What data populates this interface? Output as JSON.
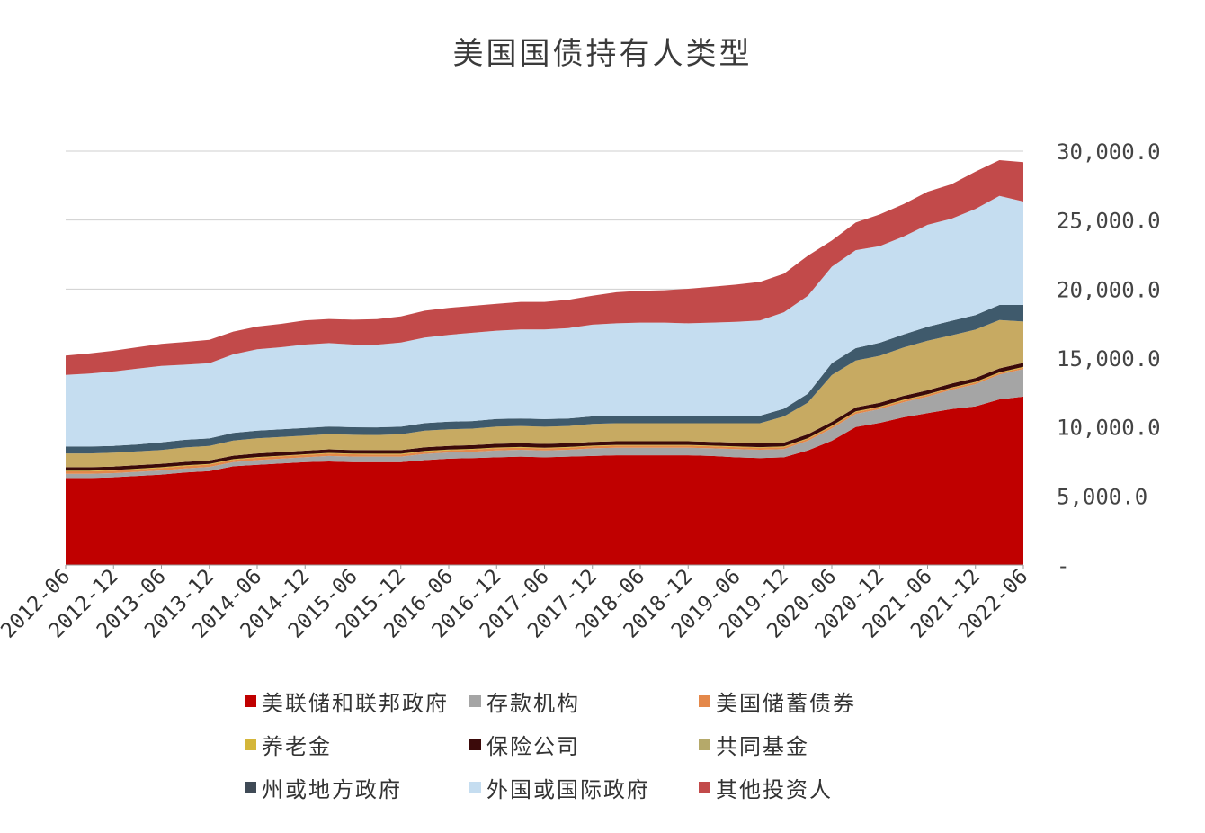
{
  "title": "美国国债持有人类型",
  "chart_data": {
    "type": "area",
    "stacked": true,
    "y_axis_position": "right",
    "ylim": [
      0,
      30000
    ],
    "y_ticks": [
      0,
      5000,
      10000,
      15000,
      20000,
      25000,
      30000
    ],
    "y_tick_labels": [
      "-",
      "5,000.0",
      "10,000.0",
      "15,000.0",
      "20,000.0",
      "25,000.0",
      "30,000.0"
    ],
    "grid": true,
    "x_tick_labels": [
      "2012-06",
      "2012-12",
      "2013-06",
      "2013-12",
      "2014-06",
      "2014-12",
      "2015-06",
      "2015-12",
      "2016-06",
      "2016-12",
      "2017-06",
      "2017-12",
      "2018-06",
      "2018-12",
      "2019-06",
      "2019-12",
      "2020-06",
      "2020-12",
      "2021-06",
      "2021-12",
      "2022-06"
    ],
    "x": [
      "2012-06",
      "2012-09",
      "2012-12",
      "2013-03",
      "2013-06",
      "2013-09",
      "2013-12",
      "2014-03",
      "2014-06",
      "2014-09",
      "2014-12",
      "2015-03",
      "2015-06",
      "2015-09",
      "2015-12",
      "2016-03",
      "2016-06",
      "2016-09",
      "2016-12",
      "2017-03",
      "2017-06",
      "2017-09",
      "2017-12",
      "2018-03",
      "2018-06",
      "2018-09",
      "2018-12",
      "2019-03",
      "2019-06",
      "2019-09",
      "2019-12",
      "2020-03",
      "2020-06",
      "2020-09",
      "2020-12",
      "2021-03",
      "2021-06",
      "2021-09",
      "2021-12",
      "2022-03",
      "2022-06"
    ],
    "legend_position": "bottom",
    "series": [
      {
        "name": "美联储和联邦政府",
        "color": "#c00000",
        "values": [
          6300,
          6300,
          6350,
          6450,
          6550,
          6700,
          6800,
          7150,
          7250,
          7350,
          7450,
          7500,
          7450,
          7450,
          7450,
          7600,
          7700,
          7750,
          7800,
          7850,
          7800,
          7850,
          7900,
          7950,
          7950,
          7950,
          7950,
          7900,
          7800,
          7750,
          7800,
          8300,
          9000,
          10000,
          10300,
          10700,
          11000,
          11300,
          11500,
          12000,
          12200
        ]
      },
      {
        "name": "存款机构",
        "color": "#a5a5a5",
        "values": [
          300,
          300,
          300,
          300,
          300,
          300,
          300,
          300,
          350,
          350,
          350,
          400,
          400,
          400,
          400,
          450,
          450,
          450,
          500,
          500,
          500,
          500,
          550,
          550,
          550,
          550,
          550,
          550,
          600,
          600,
          600,
          700,
          900,
          950,
          1000,
          1100,
          1200,
          1400,
          1600,
          1800,
          2000
        ]
      },
      {
        "name": "美国储蓄债券",
        "color": "#e4884a",
        "values": [
          180,
          180,
          180,
          180,
          180,
          170,
          170,
          170,
          170,
          170,
          170,
          170,
          170,
          160,
          160,
          160,
          160,
          160,
          160,
          150,
          150,
          150,
          150,
          150,
          150,
          150,
          150,
          150,
          140,
          140,
          140,
          140,
          140,
          140,
          130,
          130,
          130,
          120,
          120,
          110,
          110
        ]
      },
      {
        "name": "养老金",
        "color": "#d4b63a",
        "values": [
          50,
          50,
          50,
          50,
          50,
          50,
          50,
          50,
          50,
          50,
          50,
          50,
          50,
          50,
          50,
          50,
          50,
          50,
          50,
          50,
          50,
          50,
          50,
          50,
          50,
          50,
          50,
          50,
          50,
          50,
          50,
          50,
          50,
          50,
          50,
          50,
          50,
          50,
          50,
          50,
          50
        ]
      },
      {
        "name": "保险公司",
        "color": "#3b0a0a",
        "values": [
          250,
          250,
          250,
          250,
          250,
          250,
          250,
          250,
          260,
          260,
          260,
          260,
          260,
          260,
          260,
          270,
          270,
          270,
          270,
          270,
          270,
          270,
          270,
          270,
          270,
          270,
          270,
          270,
          280,
          280,
          280,
          280,
          280,
          280,
          280,
          280,
          280,
          280,
          290,
          290,
          290
        ]
      },
      {
        "name": "共同基金",
        "color": "#c7aa62",
        "values": [
          1000,
          1000,
          1000,
          1000,
          1000,
          1050,
          1050,
          1100,
          1100,
          1100,
          1100,
          1100,
          1100,
          1100,
          1150,
          1200,
          1200,
          1200,
          1250,
          1250,
          1250,
          1250,
          1300,
          1300,
          1300,
          1300,
          1300,
          1350,
          1400,
          1450,
          1900,
          2300,
          3400,
          3400,
          3400,
          3500,
          3600,
          3500,
          3500,
          3500,
          3000
        ]
      },
      {
        "name": "州或地方政府",
        "color": "#3f5a6c",
        "values": [
          500,
          500,
          500,
          500,
          550,
          550,
          550,
          550,
          550,
          550,
          550,
          550,
          550,
          550,
          550,
          550,
          550,
          550,
          550,
          550,
          550,
          550,
          550,
          550,
          550,
          550,
          550,
          550,
          550,
          550,
          550,
          650,
          850,
          900,
          950,
          950,
          1000,
          1050,
          1050,
          1100,
          1200
        ]
      },
      {
        "name": "外国或国际政府",
        "color": "#c5ddf0",
        "values": [
          5200,
          5300,
          5400,
          5500,
          5550,
          5450,
          5450,
          5700,
          5900,
          5950,
          6050,
          6050,
          6000,
          6000,
          6100,
          6200,
          6300,
          6400,
          6400,
          6450,
          6500,
          6550,
          6650,
          6700,
          6750,
          6750,
          6700,
          6750,
          6800,
          6900,
          7000,
          7100,
          7000,
          7100,
          7000,
          7100,
          7400,
          7400,
          7700,
          7900,
          7500
        ]
      },
      {
        "name": "其他投资人",
        "color": "#c24a4a",
        "values": [
          1400,
          1450,
          1500,
          1550,
          1600,
          1650,
          1700,
          1650,
          1650,
          1700,
          1750,
          1750,
          1800,
          1850,
          1900,
          1950,
          1950,
          1950,
          1950,
          2000,
          2000,
          2050,
          2100,
          2250,
          2300,
          2350,
          2500,
          2600,
          2700,
          2800,
          2800,
          2900,
          1900,
          2000,
          2300,
          2350,
          2400,
          2500,
          2700,
          2600,
          2850
        ]
      }
    ]
  },
  "legend": [
    {
      "label": "美联储和联邦政府",
      "color": "#c00000"
    },
    {
      "label": "存款机构",
      "color": "#a5a5a5"
    },
    {
      "label": "美国储蓄债券",
      "color": "#e4884a"
    },
    {
      "label": "养老金",
      "color": "#d4b63a"
    },
    {
      "label": "保险公司",
      "color": "#3b0a0a"
    },
    {
      "label": "共同基金",
      "color": "#b5a96a"
    },
    {
      "label": "州或地方政府",
      "color": "#3f4a56"
    },
    {
      "label": "外国或国际政府",
      "color": "#c5ddf0"
    },
    {
      "label": "其他投资人",
      "color": "#c24a4a"
    }
  ]
}
